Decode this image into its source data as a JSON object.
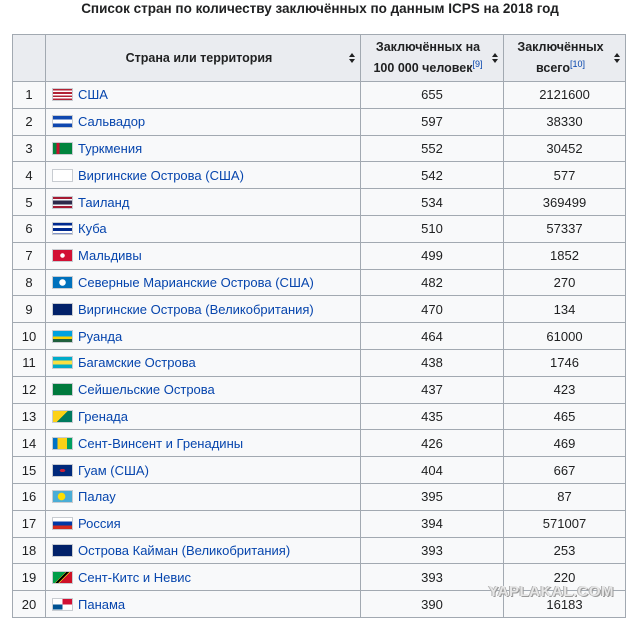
{
  "title": "Список стран по количеству заключённых по данным ICPS на 2018 год",
  "headers": {
    "country": "Страна или территория",
    "rate_line1": "Заключённых на",
    "rate_line2": "100 000 человек",
    "rate_ref": "[9]",
    "total_line1": "Заключённых",
    "total_line2": "всего",
    "total_ref": "[10]"
  },
  "rows": [
    {
      "n": "1",
      "country": "США",
      "rate": "655",
      "total": "2121600",
      "flag": "us"
    },
    {
      "n": "2",
      "country": "Сальвадор",
      "rate": "597",
      "total": "38330",
      "flag": "sv"
    },
    {
      "n": "3",
      "country": "Туркмения",
      "rate": "552",
      "total": "30452",
      "flag": "tm"
    },
    {
      "n": "4",
      "country": "Виргинские Острова (США)",
      "rate": "542",
      "total": "577",
      "flag": "vi"
    },
    {
      "n": "5",
      "country": "Таиланд",
      "rate": "534",
      "total": "369499",
      "flag": "th"
    },
    {
      "n": "6",
      "country": "Куба",
      "rate": "510",
      "total": "57337",
      "flag": "cu"
    },
    {
      "n": "7",
      "country": "Мальдивы",
      "rate": "499",
      "total": "1852",
      "flag": "mv"
    },
    {
      "n": "8",
      "country": "Северные Марианские Острова (США)",
      "rate": "482",
      "total": "270",
      "flag": "mp"
    },
    {
      "n": "9",
      "country": "Виргинские Острова (Великобритания)",
      "rate": "470",
      "total": "134",
      "flag": "vg"
    },
    {
      "n": "10",
      "country": "Руанда",
      "rate": "464",
      "total": "61000",
      "flag": "rw"
    },
    {
      "n": "11",
      "country": "Багамские Острова",
      "rate": "438",
      "total": "1746",
      "flag": "bs"
    },
    {
      "n": "12",
      "country": "Сейшельские Острова",
      "rate": "437",
      "total": "423",
      "flag": "sc"
    },
    {
      "n": "13",
      "country": "Гренада",
      "rate": "435",
      "total": "465",
      "flag": "gd"
    },
    {
      "n": "14",
      "country": "Сент-Винсент и Гренадины",
      "rate": "426",
      "total": "469",
      "flag": "vc"
    },
    {
      "n": "15",
      "country": "Гуам (США)",
      "rate": "404",
      "total": "667",
      "flag": "gu"
    },
    {
      "n": "16",
      "country": "Палау",
      "rate": "395",
      "total": "87",
      "flag": "pw"
    },
    {
      "n": "17",
      "country": "Россия",
      "rate": "394",
      "total": "571007",
      "flag": "ru"
    },
    {
      "n": "18",
      "country": "Острова Кайман (Великобритания)",
      "rate": "393",
      "total": "253",
      "flag": "ky"
    },
    {
      "n": "19",
      "country": "Сент-Китс и Невис",
      "rate": "393",
      "total": "220",
      "flag": "kn"
    },
    {
      "n": "20",
      "country": "Панама",
      "rate": "390",
      "total": "16183",
      "flag": "pa"
    }
  ],
  "watermark": "YAPLAKAL.COM",
  "colors": {
    "link": "#0645ad",
    "header_bg": "#eaecf0",
    "cell_bg": "#f8f9fa",
    "border": "#a2a9b1"
  }
}
